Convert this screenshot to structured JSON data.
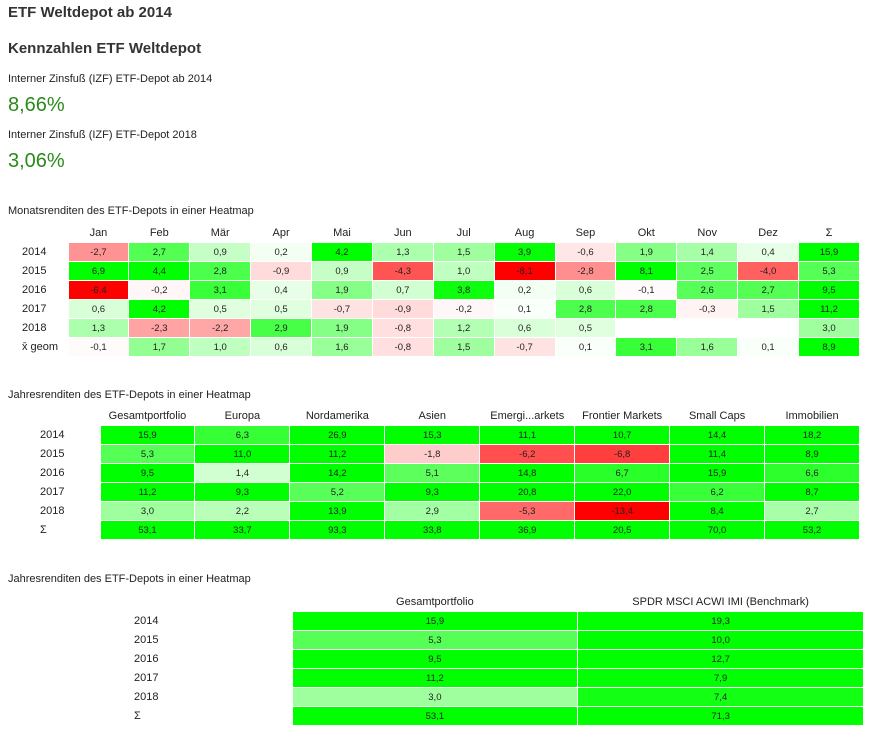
{
  "page": {
    "title": "ETF Weltdepot ab 2014",
    "subtitle": "Kennzahlen ETF Weltdepot"
  },
  "kpis": [
    {
      "label": "Interner Zinsfuß (IZF) ETF-Depot ab 2014",
      "value": "8,66%"
    },
    {
      "label": "Interner Zinsfuß (IZF) ETF-Depot 2018",
      "value": "3,06%"
    }
  ],
  "monthly": {
    "title": "Monatsrenditen des ETF-Depots in einer Heatmap",
    "columns": [
      "",
      "Jan",
      "Feb",
      "Mär",
      "Apr",
      "Mai",
      "Jun",
      "Jul",
      "Aug",
      "Sep",
      "Okt",
      "Nov",
      "Dez",
      "Σ"
    ],
    "rows": [
      {
        "label": "2014",
        "values": [
          -2.7,
          2.7,
          0.9,
          0.2,
          4.2,
          1.3,
          1.5,
          3.9,
          -0.6,
          1.9,
          1.4,
          0.4,
          15.9
        ]
      },
      {
        "label": "2015",
        "values": [
          6.9,
          4.4,
          2.8,
          -0.9,
          0.9,
          -4.3,
          1.0,
          -8.1,
          -2.8,
          8.1,
          2.5,
          -4.0,
          5.3
        ]
      },
      {
        "label": "2016",
        "values": [
          -6.4,
          -0.2,
          3.1,
          0.4,
          1.9,
          0.7,
          3.8,
          0.2,
          0.6,
          -0.1,
          2.6,
          2.7,
          9.5
        ]
      },
      {
        "label": "2017",
        "values": [
          0.6,
          4.2,
          0.5,
          0.5,
          -0.7,
          -0.9,
          -0.2,
          0.1,
          2.8,
          2.8,
          -0.3,
          1.5,
          11.2
        ]
      },
      {
        "label": "2018",
        "values": [
          1.3,
          -2.3,
          -2.2,
          2.9,
          1.9,
          -0.8,
          1.2,
          0.6,
          0.5,
          null,
          null,
          null,
          3.0
        ]
      },
      {
        "label": "x̄ geom",
        "values": [
          -0.1,
          1.7,
          1.0,
          0.6,
          1.6,
          -0.8,
          1.5,
          -0.7,
          0.1,
          3.1,
          1.6,
          0.1,
          8.9
        ]
      }
    ]
  },
  "yearly": {
    "title": "Jahresrenditen des ETF-Depots in einer Heatmap",
    "columns": [
      "",
      "Gesamtportfolio",
      "Europa",
      "Nordamerika",
      "Asien",
      "Emergi...arkets",
      "Frontier Markets",
      "Small Caps",
      "Immobilien"
    ],
    "rows": [
      {
        "label": "2014",
        "values": [
          15.9,
          6.3,
          26.9,
          15.3,
          11.1,
          10.7,
          14.4,
          18.2
        ]
      },
      {
        "label": "2015",
        "values": [
          5.3,
          11.0,
          11.2,
          -1.8,
          -6.2,
          -6.8,
          11.4,
          8.9
        ]
      },
      {
        "label": "2016",
        "values": [
          9.5,
          1.4,
          14.2,
          5.1,
          14.8,
          6.7,
          15.9,
          6.6
        ]
      },
      {
        "label": "2017",
        "values": [
          11.2,
          9.3,
          5.2,
          9.3,
          20.8,
          22.0,
          6.2,
          8.7
        ]
      },
      {
        "label": "2018",
        "values": [
          3.0,
          2.2,
          13.9,
          2.9,
          -5.3,
          -13.4,
          8.4,
          2.7
        ]
      },
      {
        "label": "Σ",
        "values": [
          53.1,
          33.7,
          93.3,
          33.8,
          36.9,
          20.5,
          70.0,
          53.2
        ]
      }
    ]
  },
  "benchmark": {
    "title": "Jahresrenditen des ETF-Depots in einer Heatmap",
    "columns": [
      "",
      "Gesamtportfolio",
      "SPDR MSCI ACWI IMI  (Benchmark)"
    ],
    "rows": [
      {
        "label": "2014",
        "values": [
          15.9,
          19.3
        ]
      },
      {
        "label": "2015",
        "values": [
          5.3,
          10.0
        ]
      },
      {
        "label": "2016",
        "values": [
          9.5,
          12.7
        ]
      },
      {
        "label": "2017",
        "values": [
          11.2,
          7.9
        ]
      },
      {
        "label": "2018",
        "values": [
          3.0,
          7.4
        ]
      },
      {
        "label": "Σ",
        "values": [
          53.1,
          71.3
        ]
      }
    ]
  },
  "colors": {
    "positive_max": "#00ff00",
    "negative_max": "#ff0000",
    "neutral": "#ffffff",
    "kpi_text": "#2a8a1a"
  }
}
